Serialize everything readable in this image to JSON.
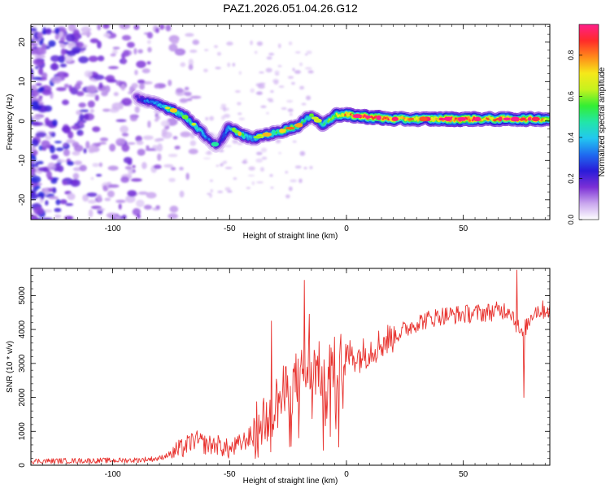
{
  "title": "PAZ1.2026.051.04.26.G12",
  "chart_data": [
    {
      "type": "heatmap",
      "name": "spectrogram",
      "xlabel": "Height of straight line (km)",
      "ylabel": "Frequency (Hz)",
      "xlim": [
        -135,
        87
      ],
      "ylim": [
        -25,
        24.5
      ],
      "xticks": [
        -100,
        -50,
        0,
        50
      ],
      "yticks": [
        -20,
        -10,
        0,
        10,
        20
      ],
      "colorbar": {
        "label": "Normalized spectral amplitude",
        "range": [
          0.0,
          0.95
        ],
        "ticks": [
          0.0,
          0.2,
          0.4,
          0.6,
          0.8
        ],
        "colors": [
          "#ffffff",
          "#c9a6ee",
          "#7b2fd6",
          "#2a1bd8",
          "#1f6cf0",
          "#22c8f0",
          "#22e6a8",
          "#33ee33",
          "#c6f21e",
          "#f6e81a",
          "#ff8a1a",
          "#ff2a2a",
          "#ff1f8a"
        ]
      },
      "ridge": {
        "x": [
          -90,
          -85,
          -80,
          -75,
          -70,
          -65,
          -60,
          -55,
          -50,
          -45,
          -40,
          -35,
          -30,
          -25,
          -20,
          -15,
          -10,
          -5,
          0,
          10,
          20,
          30,
          40,
          50,
          60,
          70,
          80,
          87
        ],
        "freq": [
          6,
          5,
          4,
          3,
          1.5,
          -1,
          -4,
          -6.5,
          -1.5,
          -3.5,
          -4.5,
          -3.5,
          -3,
          -2,
          -1,
          1.5,
          -1,
          1.5,
          1.5,
          1,
          0.5,
          0.5,
          0.5,
          0.5,
          0.5,
          0.5,
          0.5,
          0.5
        ],
        "amplitude": [
          0.15,
          0.3,
          0.35,
          0.5,
          0.4,
          0.45,
          0.35,
          0.2,
          0.35,
          0.5,
          0.35,
          0.45,
          0.5,
          0.55,
          0.5,
          0.4,
          0.45,
          0.55,
          0.7,
          0.8,
          0.75,
          0.65,
          0.75,
          0.85,
          0.7,
          0.75,
          0.7,
          0.65
        ]
      }
    },
    {
      "type": "line",
      "name": "snr",
      "xlabel": "Height of straight line (km)",
      "ylabel": "SNR (10 * v/v)",
      "xlim": [
        -135,
        87
      ],
      "ylim": [
        0,
        5800
      ],
      "xticks": [
        -100,
        -50,
        0,
        50
      ],
      "yticks": [
        0,
        1000,
        2000,
        3000,
        4000,
        5000
      ],
      "color": "#e8322e",
      "series": [
        {
          "name": "SNR",
          "x": [
            -135,
            -120,
            -100,
            -90,
            -80,
            -75,
            -70,
            -65,
            -60,
            -55,
            -50,
            -45,
            -40,
            -35,
            -30,
            -25,
            -20,
            -15,
            -10,
            -5,
            0,
            5,
            10,
            15,
            20,
            25,
            30,
            35,
            40,
            50,
            60,
            70,
            75,
            80,
            87
          ],
          "y": [
            120,
            130,
            140,
            150,
            200,
            350,
            500,
            750,
            600,
            600,
            450,
            650,
            900,
            1400,
            1800,
            2200,
            2600,
            2900,
            2700,
            2900,
            3300,
            3200,
            3400,
            3600,
            3800,
            4000,
            4200,
            4300,
            4400,
            4450,
            4500,
            4600,
            3800,
            4550,
            4600
          ]
        }
      ],
      "peaks": {
        "x": [
          -32,
          -18,
          -16,
          76,
          73
        ],
        "y": [
          4250,
          5450,
          4450,
          2000,
          5750
        ]
      }
    }
  ]
}
